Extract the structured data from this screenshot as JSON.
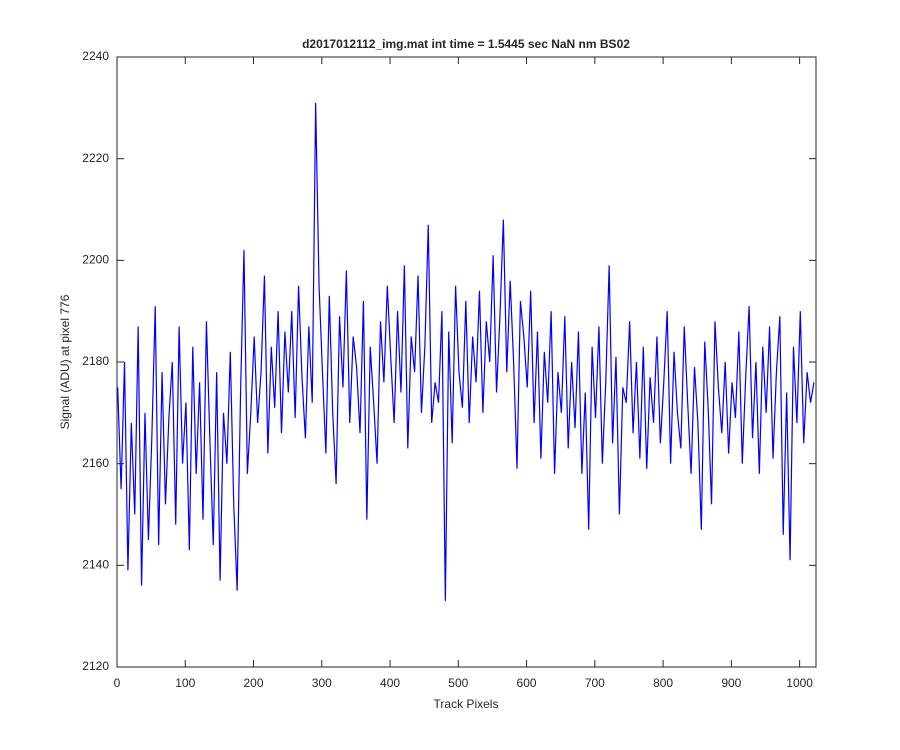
{
  "chart_data": {
    "type": "line",
    "title": "d2017012112_img.mat int time = 1.5445 sec  NaN nm BS02",
    "xlabel": "Track Pixels",
    "ylabel": "Signal (ADU) at pixel 776",
    "xlim": [
      0,
      1024
    ],
    "ylim": [
      2120,
      2240
    ],
    "xticks": [
      0,
      100,
      200,
      300,
      400,
      500,
      600,
      700,
      800,
      900,
      1000
    ],
    "yticks": [
      2120,
      2140,
      2160,
      2180,
      2200,
      2220,
      2240
    ],
    "x": [
      1,
      6,
      11,
      16,
      21,
      26,
      31,
      36,
      41,
      46,
      51,
      56,
      61,
      66,
      71,
      76,
      81,
      86,
      91,
      96,
      101,
      106,
      111,
      116,
      121,
      126,
      131,
      136,
      141,
      146,
      151,
      156,
      161,
      166,
      171,
      176,
      181,
      186,
      191,
      196,
      201,
      206,
      211,
      216,
      221,
      226,
      231,
      236,
      241,
      246,
      251,
      256,
      261,
      266,
      271,
      276,
      281,
      286,
      291,
      296,
      301,
      306,
      311,
      316,
      321,
      326,
      331,
      336,
      341,
      346,
      351,
      356,
      361,
      366,
      371,
      376,
      381,
      386,
      391,
      396,
      401,
      406,
      411,
      416,
      421,
      426,
      431,
      436,
      441,
      446,
      451,
      456,
      461,
      466,
      471,
      476,
      481,
      486,
      491,
      496,
      501,
      506,
      511,
      516,
      521,
      526,
      531,
      536,
      541,
      546,
      551,
      556,
      561,
      566,
      571,
      576,
      581,
      586,
      591,
      596,
      601,
      606,
      611,
      616,
      621,
      626,
      631,
      636,
      641,
      646,
      651,
      656,
      661,
      666,
      671,
      676,
      681,
      686,
      691,
      696,
      701,
      706,
      711,
      716,
      721,
      726,
      731,
      736,
      741,
      746,
      751,
      756,
      761,
      766,
      771,
      776,
      781,
      786,
      791,
      796,
      801,
      806,
      811,
      816,
      821,
      826,
      831,
      836,
      841,
      846,
      851,
      856,
      861,
      866,
      871,
      876,
      881,
      886,
      891,
      896,
      901,
      906,
      911,
      916,
      921,
      926,
      931,
      936,
      941,
      946,
      951,
      956,
      961,
      966,
      971,
      976,
      981,
      986,
      991,
      996,
      1001,
      1006,
      1011,
      1016,
      1021
    ],
    "series": [
      {
        "color": "#0000ff",
        "values": [
          2175,
          2155,
          2180,
          2139,
          2168,
          2150,
          2187,
          2136,
          2170,
          2145,
          2165,
          2191,
          2144,
          2178,
          2152,
          2169,
          2180,
          2148,
          2187,
          2160,
          2172,
          2143,
          2183,
          2158,
          2176,
          2149,
          2188,
          2165,
          2144,
          2178,
          2137,
          2170,
          2160,
          2182,
          2152,
          2135,
          2174,
          2202,
          2158,
          2170,
          2185,
          2168,
          2178,
          2197,
          2162,
          2183,
          2171,
          2190,
          2166,
          2186,
          2174,
          2190,
          2169,
          2195,
          2177,
          2165,
          2187,
          2172,
          2231,
          2195,
          2178,
          2162,
          2193,
          2170,
          2156,
          2189,
          2175,
          2198,
          2168,
          2185,
          2179,
          2166,
          2192,
          2149,
          2183,
          2172,
          2160,
          2188,
          2176,
          2195,
          2181,
          2168,
          2190,
          2174,
          2199,
          2163,
          2185,
          2178,
          2197,
          2170,
          2183,
          2207,
          2168,
          2176,
          2172,
          2190,
          2133,
          2186,
          2164,
          2195,
          2178,
          2171,
          2192,
          2168,
          2185,
          2176,
          2194,
          2170,
          2188,
          2180,
          2201,
          2174,
          2189,
          2208,
          2178,
          2196,
          2180,
          2159,
          2192,
          2185,
          2175,
          2194,
          2168,
          2186,
          2161,
          2182,
          2172,
          2190,
          2158,
          2178,
          2170,
          2189,
          2163,
          2180,
          2167,
          2186,
          2158,
          2174,
          2147,
          2183,
          2169,
          2187,
          2160,
          2176,
          2199,
          2164,
          2181,
          2150,
          2175,
          2172,
          2188,
          2166,
          2180,
          2161,
          2183,
          2159,
          2177,
          2168,
          2185,
          2164,
          2176,
          2190,
          2160,
          2182,
          2170,
          2163,
          2187,
          2172,
          2158,
          2179,
          2168,
          2147,
          2184,
          2171,
          2152,
          2188,
          2175,
          2166,
          2180,
          2162,
          2176,
          2169,
          2186,
          2160,
          2177,
          2191,
          2165,
          2180,
          2158,
          2183,
          2170,
          2187,
          2161,
          2178,
          2189,
          2146,
          2174,
          2141,
          2183,
          2168,
          2190,
          2164,
          2178,
          2172,
          2176
        ]
      }
    ]
  }
}
